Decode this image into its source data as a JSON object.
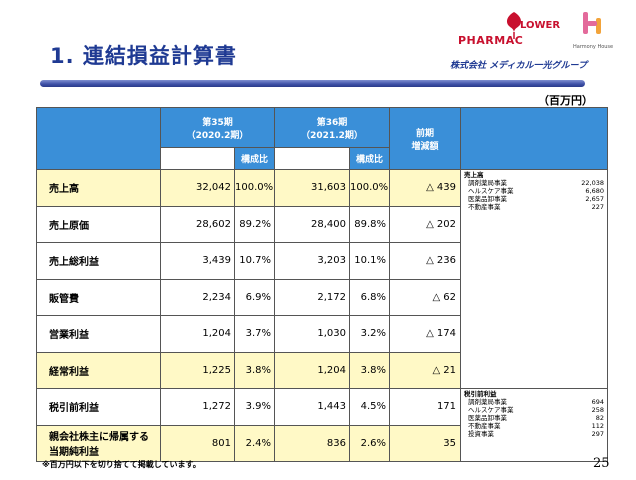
{
  "title": "1. 連結損益計算書",
  "logos": {
    "pharmac": "PHARMAC",
    "flower_lower": "LOWER",
    "harmony": "Harmony House",
    "medical": "株式会社 メディカル一光グループ"
  },
  "unit": "（百万円）",
  "header": {
    "col35": "第35期\n（2020.2期）",
    "col36": "第36期\n（2021.2期）",
    "comp": "構成比",
    "diff": "前期\n増減額"
  },
  "rows": [
    {
      "label": "売上高",
      "v35": "32,042",
      "p35": "100.0%",
      "v36": "31,603",
      "p36": "100.0%",
      "diff": "△ 439",
      "hl": true
    },
    {
      "label": "売上原価",
      "v35": "28,602",
      "p35": "89.2%",
      "v36": "28,400",
      "p36": "89.8%",
      "diff": "△ 202",
      "hl": false
    },
    {
      "label": "売上総利益",
      "v35": "3,439",
      "p35": "10.7%",
      "v36": "3,203",
      "p36": "10.1%",
      "diff": "△ 236",
      "hl": false
    },
    {
      "label": "販管費",
      "v35": "2,234",
      "p35": "6.9%",
      "v36": "2,172",
      "p36": "6.8%",
      "diff": "△ 62",
      "hl": false
    },
    {
      "label": "営業利益",
      "v35": "1,204",
      "p35": "3.7%",
      "v36": "1,030",
      "p36": "3.2%",
      "diff": "△ 174",
      "hl": false
    },
    {
      "label": "経常利益",
      "v35": "1,225",
      "p35": "3.8%",
      "v36": "1,204",
      "p36": "3.8%",
      "diff": "△ 21",
      "hl": true
    },
    {
      "label": "税引前利益",
      "v35": "1,272",
      "p35": "3.9%",
      "v36": "1,443",
      "p36": "4.5%",
      "diff": "171",
      "hl": false
    },
    {
      "label": "親会社株主に帰属する\n当期純利益",
      "v35": "801",
      "p35": "2.4%",
      "v36": "836",
      "p36": "2.6%",
      "diff": "35",
      "hl": true
    }
  ],
  "sales_note": {
    "heading": "売上高",
    "items": [
      {
        "name": "調剤薬局事業",
        "value": "22,038"
      },
      {
        "name": "ヘルスケア事業",
        "value": "6,680"
      },
      {
        "name": "医薬品卸事業",
        "value": "2,657"
      },
      {
        "name": "不動産事業",
        "value": "227"
      }
    ]
  },
  "pretax_note": {
    "heading": "税引前利益",
    "items": [
      {
        "name": "調剤薬局事業",
        "value": "694"
      },
      {
        "name": "ヘルスケア事業",
        "value": "258"
      },
      {
        "name": "医薬品卸事業",
        "value": "82"
      },
      {
        "name": "不動産事業",
        "value": "112"
      },
      {
        "name": "投資事業",
        "value": "297"
      }
    ]
  },
  "footnote": "※百万円以下を切り捨てて掲載しています。",
  "page_number": "25"
}
